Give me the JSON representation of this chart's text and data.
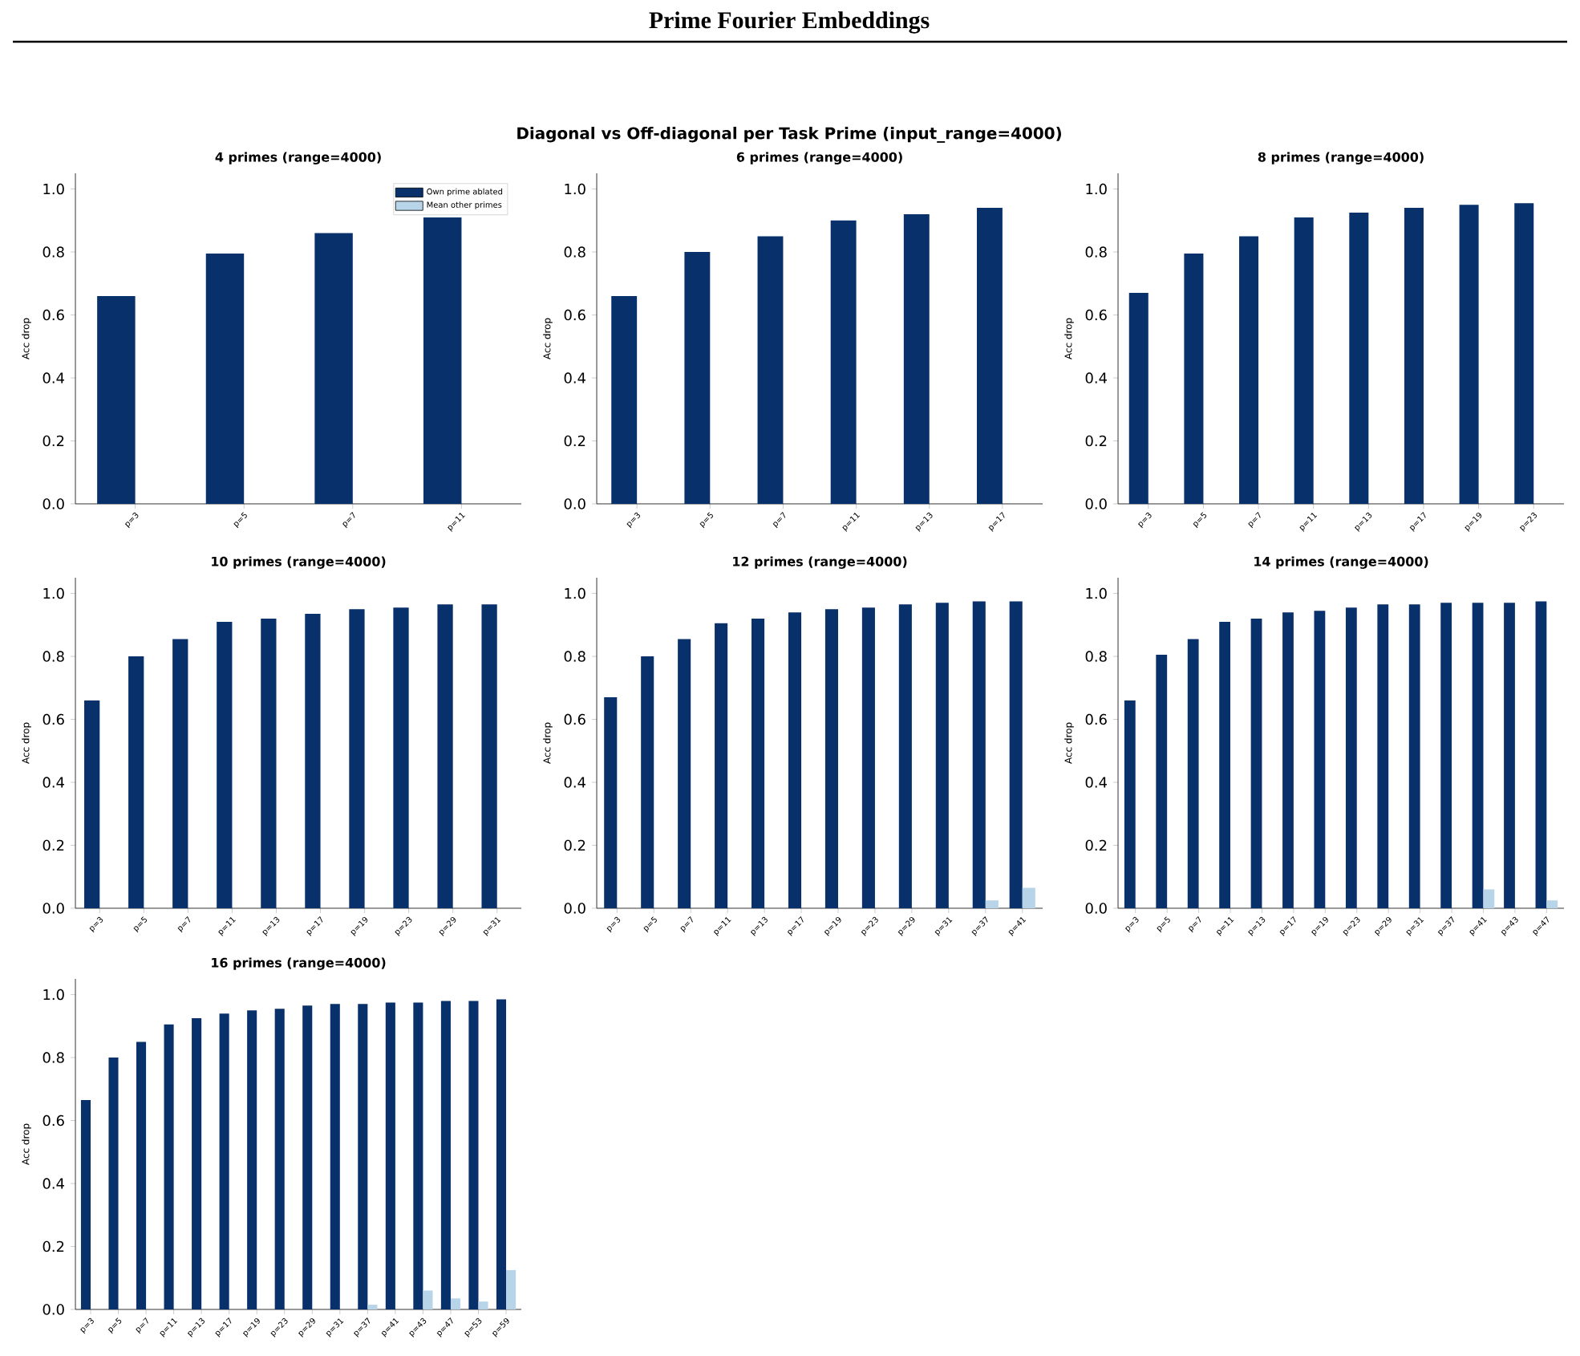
{
  "chart_data": [
    {
      "type": "bar",
      "title": "4 primes  (range=4000)",
      "ylabel": "Acc drop",
      "annotations": [
        "Prime Fourier Embeddings",
        "Diagonal vs Off-diagonal per Task Prime  (input_range=4000)"
      ],
      "legend": "top right",
      "categories": [
        "p=3",
        "p=5",
        "p=7",
        "p=11"
      ],
      "ylim": [
        0,
        1.05
      ],
      "yticks": [
        {
          "value": 0,
          "label": "0.0"
        },
        {
          "value": 0.2,
          "label": "0.2"
        },
        {
          "value": 0.4,
          "label": "0.4"
        },
        {
          "value": 0.6,
          "label": "0.6"
        },
        {
          "value": 0.8,
          "label": "0.8"
        },
        {
          "value": 1.0,
          "label": "1.0"
        }
      ],
      "series": [
        {
          "name": "Own prime ablated",
          "color": "#08306b",
          "values": [
            0.66,
            0.795,
            0.86,
            0.91
          ]
        },
        {
          "name": "Mean other primes",
          "color": "#b8d4e8",
          "values": [
            0,
            0,
            0,
            0
          ]
        }
      ]
    },
    {
      "type": "bar",
      "title": "6 primes  (range=4000)",
      "ylabel": "Acc drop",
      "categories": [
        "p=3",
        "p=5",
        "p=7",
        "p=11",
        "p=13",
        "p=17"
      ],
      "ylim": [
        0,
        1.05
      ],
      "yticks": [
        {
          "value": 0,
          "label": "0.0"
        },
        {
          "value": 0.2,
          "label": "0.2"
        },
        {
          "value": 0.4,
          "label": "0.4"
        },
        {
          "value": 0.6,
          "label": "0.6"
        },
        {
          "value": 0.8,
          "label": "0.8"
        },
        {
          "value": 1.0,
          "label": "1.0"
        }
      ],
      "series": [
        {
          "color": "#08306b",
          "values": [
            0.66,
            0.8,
            0.85,
            0.9,
            0.92,
            0.94
          ]
        },
        {
          "color": "#b8d4e8",
          "values": [
            0,
            0,
            0,
            0,
            0,
            0
          ]
        }
      ]
    },
    {
      "type": "bar",
      "title": "8 primes  (range=4000)",
      "ylabel": "Acc drop",
      "categories": [
        "p=3",
        "p=5",
        "p=7",
        "p=11",
        "p=13",
        "p=17",
        "p=19",
        "p=23"
      ],
      "ylim": [
        0,
        1.05
      ],
      "yticks": [
        {
          "value": 0,
          "label": "0.0"
        },
        {
          "value": 0.2,
          "label": "0.2"
        },
        {
          "value": 0.4,
          "label": "0.4"
        },
        {
          "value": 0.6,
          "label": "0.6"
        },
        {
          "value": 0.8,
          "label": "0.8"
        },
        {
          "value": 1.0,
          "label": "1.0"
        }
      ],
      "series": [
        {
          "color": "#08306b",
          "values": [
            0.67,
            0.795,
            0.85,
            0.91,
            0.925,
            0.94,
            0.95,
            0.955
          ]
        },
        {
          "color": "#b8d4e8",
          "values": [
            0,
            0,
            0,
            0,
            0,
            0,
            0,
            0
          ]
        }
      ]
    },
    {
      "type": "bar",
      "title": "10 primes  (range=4000)",
      "ylabel": "Acc drop",
      "categories": [
        "p=3",
        "p=5",
        "p=7",
        "p=11",
        "p=13",
        "p=17",
        "p=19",
        "p=23",
        "p=29",
        "p=31"
      ],
      "ylim": [
        0,
        1.05
      ],
      "yticks": [
        {
          "value": 0,
          "label": "0.0"
        },
        {
          "value": 0.2,
          "label": "0.2"
        },
        {
          "value": 0.4,
          "label": "0.4"
        },
        {
          "value": 0.6,
          "label": "0.6"
        },
        {
          "value": 0.8,
          "label": "0.8"
        },
        {
          "value": 1.0,
          "label": "1.0"
        }
      ],
      "series": [
        {
          "color": "#08306b",
          "values": [
            0.66,
            0.8,
            0.855,
            0.91,
            0.92,
            0.935,
            0.95,
            0.955,
            0.965,
            0.965
          ]
        },
        {
          "color": "#b8d4e8",
          "values": [
            0,
            0,
            0,
            0,
            0,
            0,
            0,
            0,
            0,
            0
          ]
        }
      ]
    },
    {
      "type": "bar",
      "title": "12 primes  (range=4000)",
      "ylabel": "Acc drop",
      "categories": [
        "p=3",
        "p=5",
        "p=7",
        "p=11",
        "p=13",
        "p=17",
        "p=19",
        "p=23",
        "p=29",
        "p=31",
        "p=37",
        "p=41"
      ],
      "ylim": [
        0,
        1.05
      ],
      "yticks": [
        {
          "value": 0,
          "label": "0.0"
        },
        {
          "value": 0.2,
          "label": "0.2"
        },
        {
          "value": 0.4,
          "label": "0.4"
        },
        {
          "value": 0.6,
          "label": "0.6"
        },
        {
          "value": 0.8,
          "label": "0.8"
        },
        {
          "value": 1.0,
          "label": "1.0"
        }
      ],
      "series": [
        {
          "color": "#08306b",
          "values": [
            0.67,
            0.8,
            0.855,
            0.905,
            0.92,
            0.94,
            0.95,
            0.955,
            0.965,
            0.97,
            0.975,
            0.975
          ]
        },
        {
          "color": "#b8d4e8",
          "values": [
            0,
            0,
            0,
            0,
            0,
            0,
            0,
            0,
            0,
            0,
            0.025,
            0.065
          ]
        }
      ]
    },
    {
      "type": "bar",
      "title": "14 primes  (range=4000)",
      "ylabel": "Acc drop",
      "categories": [
        "p=3",
        "p=5",
        "p=7",
        "p=11",
        "p=13",
        "p=17",
        "p=19",
        "p=23",
        "p=29",
        "p=31",
        "p=37",
        "p=41",
        "p=43",
        "p=47"
      ],
      "ylim": [
        0,
        1.05
      ],
      "yticks": [
        {
          "value": 0,
          "label": "0.0"
        },
        {
          "value": 0.2,
          "label": "0.2"
        },
        {
          "value": 0.4,
          "label": "0.4"
        },
        {
          "value": 0.6,
          "label": "0.6"
        },
        {
          "value": 0.8,
          "label": "0.8"
        },
        {
          "value": 1.0,
          "label": "1.0"
        }
      ],
      "series": [
        {
          "color": "#08306b",
          "values": [
            0.66,
            0.805,
            0.855,
            0.91,
            0.92,
            0.94,
            0.945,
            0.955,
            0.965,
            0.965,
            0.97,
            0.97,
            0.97,
            0.975
          ]
        },
        {
          "color": "#b8d4e8",
          "values": [
            0,
            0,
            0,
            0,
            0,
            0,
            0,
            0,
            0,
            0,
            0,
            0.06,
            0,
            0.025
          ]
        }
      ]
    },
    {
      "type": "bar",
      "title": "16 primes  (range=4000)",
      "ylabel": "Acc drop",
      "categories": [
        "p=3",
        "p=5",
        "p=7",
        "p=11",
        "p=13",
        "p=17",
        "p=19",
        "p=23",
        "p=29",
        "p=31",
        "p=37",
        "p=41",
        "p=43",
        "p=47",
        "p=53",
        "p=59"
      ],
      "ylim": [
        0,
        1.05
      ],
      "yticks": [
        {
          "value": 0,
          "label": "0.0"
        },
        {
          "value": 0.2,
          "label": "0.2"
        },
        {
          "value": 0.4,
          "label": "0.4"
        },
        {
          "value": 0.6,
          "label": "0.6"
        },
        {
          "value": 0.8,
          "label": "0.8"
        },
        {
          "value": 1.0,
          "label": "1.0"
        }
      ],
      "series": [
        {
          "color": "#08306b",
          "values": [
            0.665,
            0.8,
            0.85,
            0.905,
            0.925,
            0.94,
            0.95,
            0.955,
            0.965,
            0.97,
            0.97,
            0.975,
            0.975,
            0.98,
            0.98,
            0.985
          ]
        },
        {
          "color": "#b8d4e8",
          "values": [
            0,
            0,
            0,
            0,
            0,
            0,
            0,
            0,
            0,
            0,
            0.015,
            0,
            0.06,
            0.035,
            0.025,
            0.125
          ]
        }
      ]
    }
  ]
}
